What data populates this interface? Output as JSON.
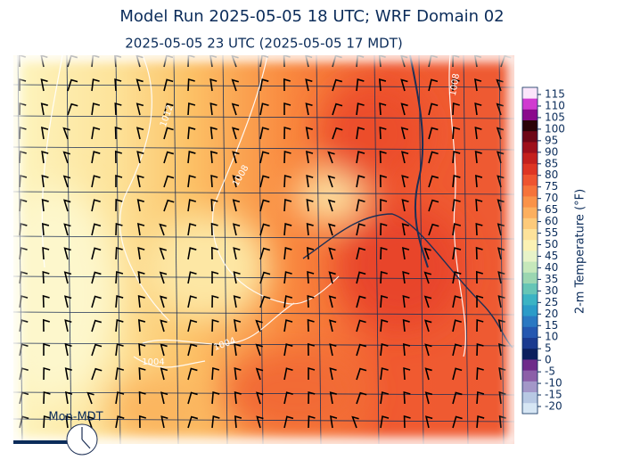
{
  "title": "Model Run 2025-05-05 18 UTC; WRF Domain 02",
  "subtitle": "2025-05-05 23 UTC  (2025-05-05 17 MDT)",
  "clock_label": "Mon-MDT",
  "colorbar": {
    "label": "2-m Temperature (°F)",
    "ticks": [
      -20,
      -15,
      -10,
      -5,
      0,
      5,
      10,
      15,
      20,
      25,
      30,
      35,
      40,
      45,
      50,
      55,
      60,
      65,
      70,
      75,
      80,
      85,
      90,
      95,
      100,
      105,
      110,
      115
    ]
  },
  "isobar_labels": [
    "1008",
    "1008",
    "1012",
    "1004",
    "1004"
  ]
}
